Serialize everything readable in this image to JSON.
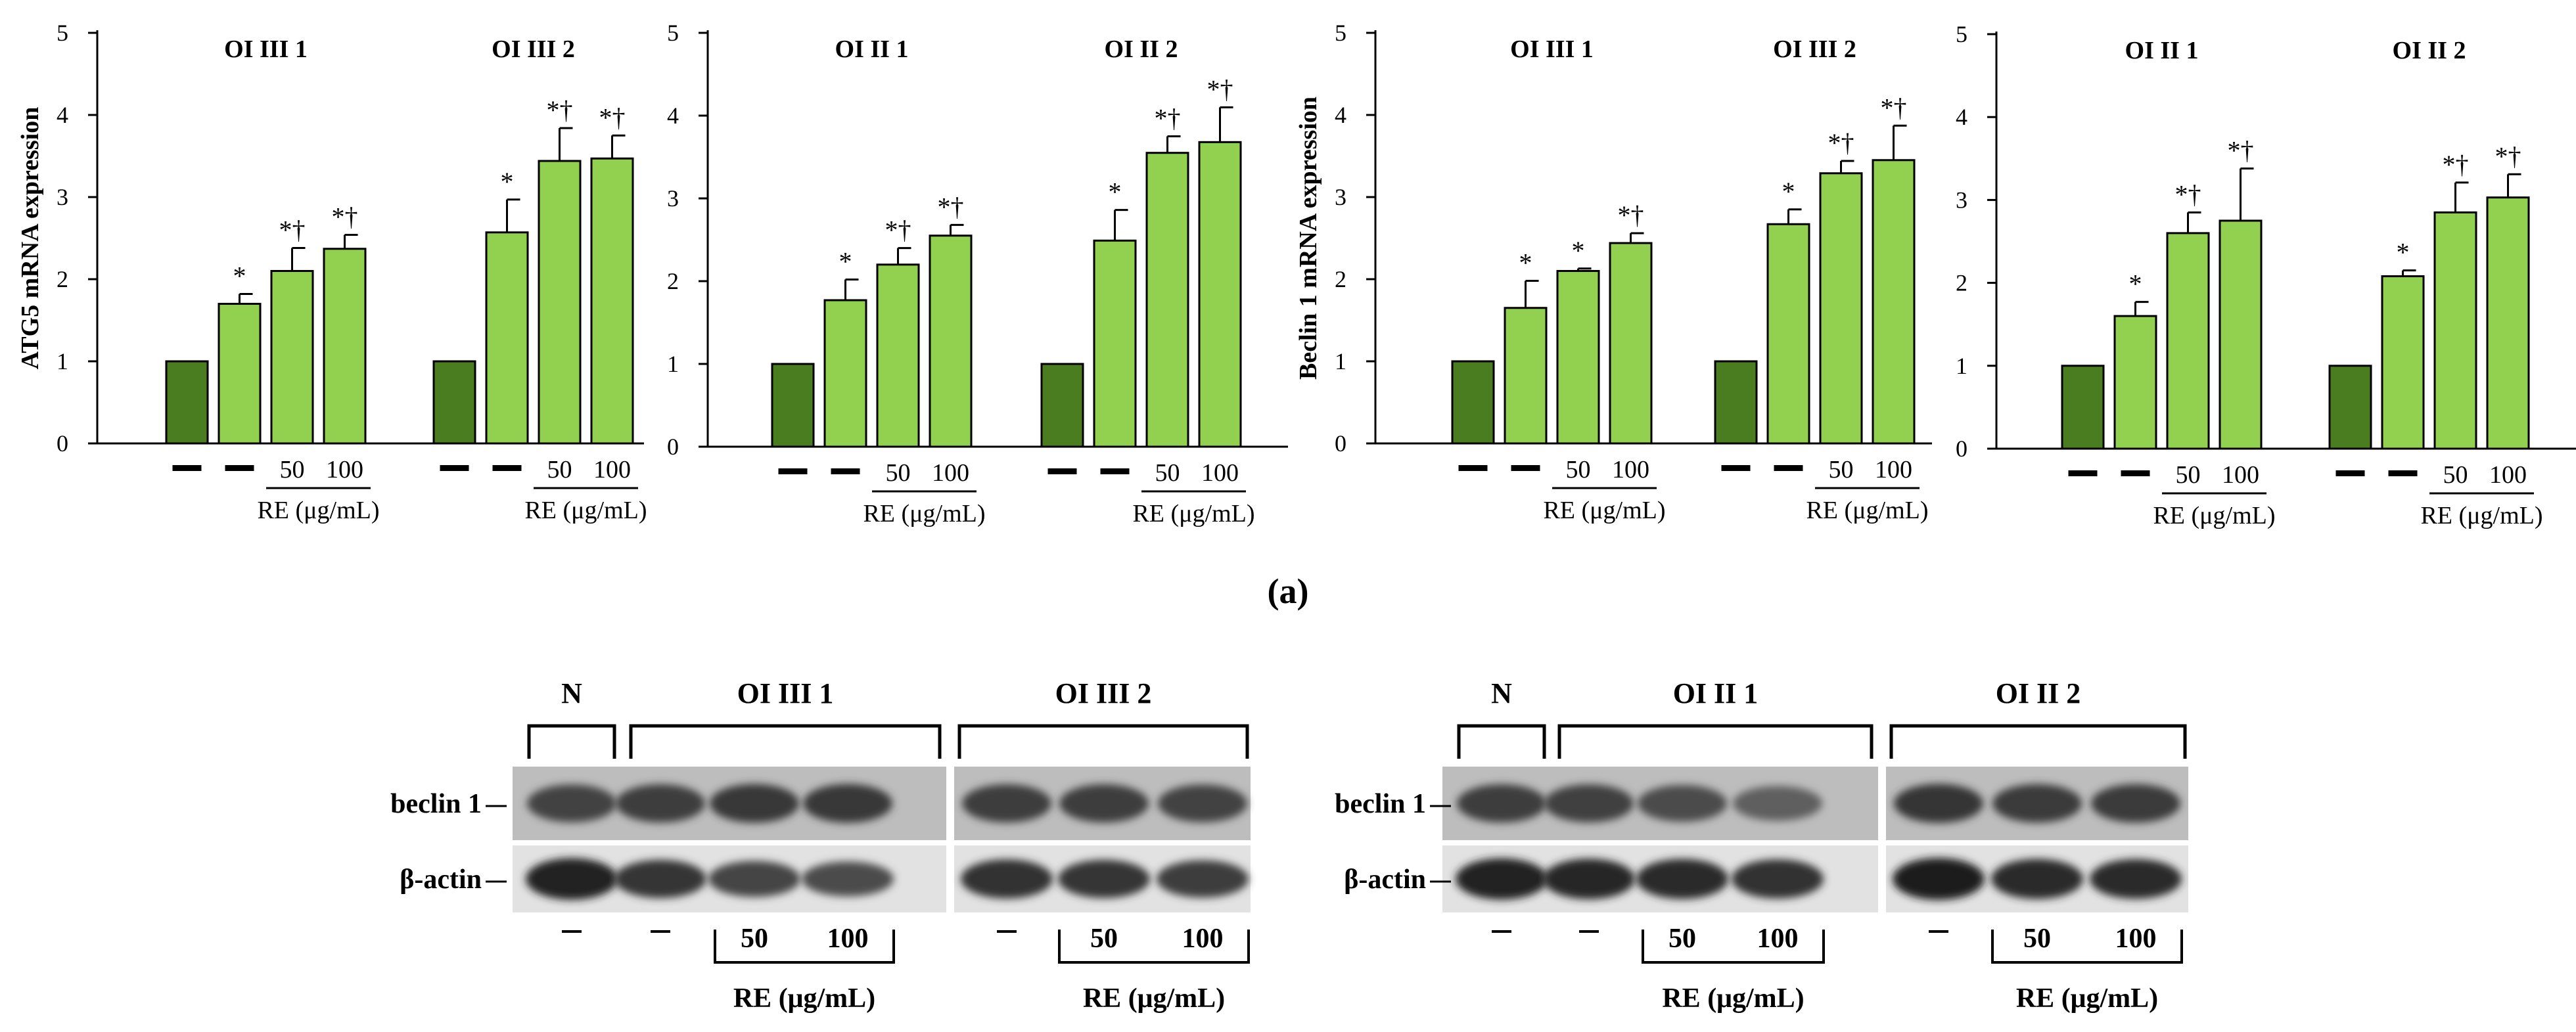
{
  "figure_label": "(a)",
  "colors": {
    "dark_bar": "#4a7d1f",
    "light_bar": "#92d050",
    "stroke": "#000000"
  },
  "chart_data": [
    {
      "type": "bar",
      "ylabel": "ATG5 mRNA expression",
      "ylim": [
        0,
        5
      ],
      "yticks": [
        "0",
        "1",
        "2",
        "3",
        "4",
        "5"
      ],
      "groups": [
        {
          "title": "OI III 1",
          "categories": [
            "—",
            "—",
            "50",
            "100"
          ],
          "values": [
            1.0,
            1.7,
            2.1,
            2.37
          ],
          "errors": [
            0,
            0.12,
            0.28,
            0.17
          ],
          "marks": [
            "",
            "*",
            "*†",
            "*†"
          ],
          "treatment_label": "RE (μg/mL)"
        },
        {
          "title": "OI III 2",
          "categories": [
            "—",
            "—",
            "50",
            "100"
          ],
          "values": [
            1.0,
            2.57,
            3.44,
            3.47
          ],
          "errors": [
            0,
            0.4,
            0.4,
            0.28
          ],
          "marks": [
            "",
            "*",
            "*†",
            "*†"
          ],
          "treatment_label": "RE (μg/mL)"
        }
      ]
    },
    {
      "type": "bar",
      "ylabel": "",
      "ylim": [
        0,
        5
      ],
      "yticks": [
        "0",
        "1",
        "2",
        "3",
        "4",
        "5"
      ],
      "groups": [
        {
          "title": "OI II 1",
          "categories": [
            "—",
            "—",
            "50",
            "100"
          ],
          "values": [
            1.0,
            1.77,
            2.2,
            2.55
          ],
          "errors": [
            0,
            0.25,
            0.2,
            0.13
          ],
          "marks": [
            "",
            "*",
            "*†",
            "*†"
          ],
          "treatment_label": "RE (μg/mL)"
        },
        {
          "title": "OI II 2",
          "categories": [
            "—",
            "—",
            "50",
            "100"
          ],
          "values": [
            1.0,
            2.49,
            3.55,
            3.68
          ],
          "errors": [
            0,
            0.37,
            0.2,
            0.42
          ],
          "marks": [
            "",
            "*",
            "*†",
            "*†"
          ],
          "treatment_label": "RE (μg/mL)"
        }
      ]
    },
    {
      "type": "bar",
      "ylabel": "Beclin 1 mRNA expression",
      "ylim": [
        0,
        5
      ],
      "yticks": [
        "0",
        "1",
        "2",
        "3",
        "4",
        "5"
      ],
      "groups": [
        {
          "title": "OI III 1",
          "categories": [
            "—",
            "—",
            "50",
            "100"
          ],
          "values": [
            1.0,
            1.65,
            2.1,
            2.44
          ],
          "errors": [
            0,
            0.33,
            0.03,
            0.12
          ],
          "marks": [
            "",
            "*",
            "*",
            "*†"
          ],
          "treatment_label": "RE (μg/mL)"
        },
        {
          "title": "OI III 2",
          "categories": [
            "—",
            "—",
            "50",
            "100"
          ],
          "values": [
            1.0,
            2.67,
            3.29,
            3.45
          ],
          "errors": [
            0,
            0.18,
            0.15,
            0.42
          ],
          "marks": [
            "",
            "*",
            "*†",
            "*†"
          ],
          "treatment_label": "RE (μg/mL)"
        }
      ]
    },
    {
      "type": "bar",
      "ylabel": "",
      "ylim": [
        0,
        5
      ],
      "yticks": [
        "0",
        "1",
        "2",
        "3",
        "4",
        "5"
      ],
      "groups": [
        {
          "title": "OI II 1",
          "categories": [
            "—",
            "—",
            "50",
            "100"
          ],
          "values": [
            1.0,
            1.6,
            2.6,
            2.75
          ],
          "errors": [
            0,
            0.17,
            0.25,
            0.63
          ],
          "marks": [
            "",
            "*",
            "*†",
            "*†"
          ],
          "treatment_label": "RE (μg/mL)"
        },
        {
          "title": "OI II 2",
          "categories": [
            "—",
            "—",
            "50",
            "100"
          ],
          "values": [
            1.0,
            2.08,
            2.85,
            3.03
          ],
          "errors": [
            0,
            0.07,
            0.36,
            0.28
          ],
          "marks": [
            "",
            "*",
            "*†",
            "*†"
          ],
          "treatment_label": "RE (μg/mL)"
        }
      ]
    }
  ],
  "blots": [
    {
      "headers": [
        "N",
        "OI III 1",
        "OI III 2"
      ],
      "rows": [
        "beclin 1",
        "β-actin"
      ],
      "lanes": [
        "—",
        "—",
        "50",
        "100",
        "—",
        "50",
        "100"
      ],
      "treatment_labels": [
        "RE (μg/mL)",
        "RE (μg/mL)"
      ],
      "beclin_intensity": [
        0.78,
        0.82,
        0.86,
        0.86,
        0.82,
        0.82,
        0.78
      ],
      "actin_intensity": [
        0.98,
        0.8,
        0.68,
        0.62,
        0.85,
        0.8,
        0.75
      ]
    },
    {
      "headers": [
        "N",
        "OI II 1",
        "OI II 2"
      ],
      "rows": [
        "beclin 1",
        "β-actin"
      ],
      "lanes": [
        "—",
        "—",
        "50",
        "100",
        "—",
        "50",
        "100"
      ],
      "treatment_labels": [
        "RE (μg/mL)",
        "RE (μg/mL)"
      ],
      "beclin_intensity": [
        0.82,
        0.8,
        0.7,
        0.55,
        0.88,
        0.84,
        0.84
      ],
      "actin_intensity": [
        0.96,
        0.92,
        0.9,
        0.85,
        1.0,
        0.9,
        0.88
      ]
    }
  ]
}
